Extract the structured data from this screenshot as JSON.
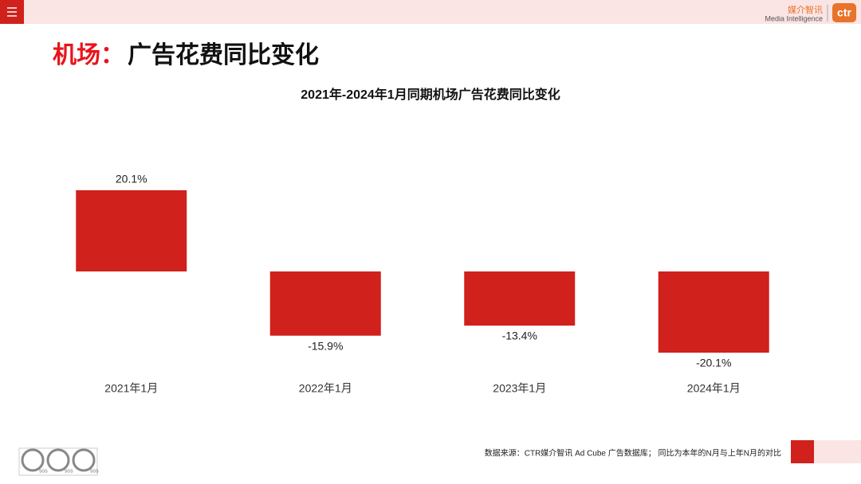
{
  "header": {
    "logo_cn": "媒介智讯",
    "logo_en": "Media Intelligence",
    "logo_mark": "ctr",
    "title_prefix": "机场：",
    "title": "广告花费同比变化"
  },
  "chart_data": {
    "type": "bar",
    "title": "2021年-2024年1月同期机场广告花费同比变化",
    "categories": [
      "2021年1月",
      "2022年1月",
      "2023年1月",
      "2024年1月"
    ],
    "values": [
      20.1,
      -15.9,
      -13.4,
      -20.1
    ],
    "value_labels": [
      "20.1%",
      "-15.9%",
      "-13.4%",
      "-20.1%"
    ],
    "color": "#d0211c"
  },
  "footer": {
    "source": "数据来源：CTR媒介智讯 Ad Cube 广告数据库；  同比为本年的N月与上年N月的对比",
    "badges": [
      "SGS",
      "SGS",
      "SGS"
    ]
  }
}
